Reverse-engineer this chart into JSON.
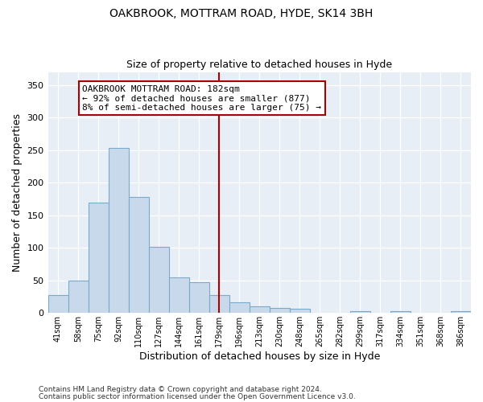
{
  "title1": "OAKBROOK, MOTTRAM ROAD, HYDE, SK14 3BH",
  "title2": "Size of property relative to detached houses in Hyde",
  "xlabel": "Distribution of detached houses by size in Hyde",
  "ylabel": "Number of detached properties",
  "footer1": "Contains HM Land Registry data © Crown copyright and database right 2024.",
  "footer2": "Contains public sector information licensed under the Open Government Licence v3.0.",
  "bar_labels": [
    "41sqm",
    "58sqm",
    "75sqm",
    "92sqm",
    "110sqm",
    "127sqm",
    "144sqm",
    "161sqm",
    "179sqm",
    "196sqm",
    "213sqm",
    "230sqm",
    "248sqm",
    "265sqm",
    "282sqm",
    "299sqm",
    "317sqm",
    "334sqm",
    "351sqm",
    "368sqm",
    "386sqm"
  ],
  "bar_values": [
    28,
    50,
    170,
    253,
    178,
    102,
    55,
    47,
    28,
    16,
    10,
    8,
    7,
    0,
    0,
    3,
    0,
    3,
    0,
    0,
    3
  ],
  "bar_color": "#c9d9ec",
  "bar_edge_color": "#7aaac8",
  "vline_color": "#aa0000",
  "annotation_title": "OAKBROOK MOTTRAM ROAD: 182sqm",
  "annotation_line1": "← 92% of detached houses are smaller (877)",
  "annotation_line2": "8% of semi-detached houses are larger (75) →",
  "annotation_box_color": "#ffffff",
  "annotation_box_edge": "#aa0000",
  "ylim": [
    0,
    370
  ],
  "yticks": [
    0,
    50,
    100,
    150,
    200,
    250,
    300,
    350
  ],
  "fig_bg": "#ffffff",
  "plot_bg": "#e8eef5",
  "vline_bar_index": 8.5
}
